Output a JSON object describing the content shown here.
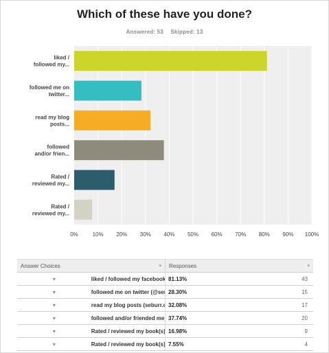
{
  "title": "Which of these have you done?",
  "answered_label": "Answered: 53",
  "skipped_label": "Skipped: 13",
  "chart_data": {
    "type": "bar",
    "orientation": "horizontal",
    "categories": [
      "liked / followed my...",
      "followed me on twitter...",
      "read my blog posts...",
      "followed and/or frien...",
      "Rated / reviewed my...",
      "Rated / reviewed my..."
    ],
    "values": [
      81.13,
      28.3,
      32.08,
      37.74,
      16.98,
      7.55
    ],
    "colors": [
      "#cdd52a",
      "#35bec2",
      "#f6ad23",
      "#8c8b7c",
      "#2d5c6c",
      "#d3d2c4"
    ],
    "xlim": [
      0,
      100
    ],
    "xticks": [
      "0%",
      "10%",
      "20%",
      "30%",
      "40%",
      "50%",
      "60%",
      "70%",
      "80%",
      "90%",
      "100%"
    ],
    "grid": true
  },
  "table": {
    "header": {
      "choices": "Answer Choices",
      "responses": "Responses"
    },
    "rows": [
      {
        "label": "liked / followed my facebook page (https://www.facebook.com/serinburr)",
        "pct": "81.13%",
        "count": "43"
      },
      {
        "label": "followed me on twitter (@serinburr)",
        "pct": "28.30%",
        "count": "15"
      },
      {
        "label": "read my blog posts (seburr.com/blog)",
        "pct": "32.08%",
        "count": "17"
      },
      {
        "label": "followed and/or friended me on Goodreads",
        "pct": "37.74%",
        "count": "20"
      },
      {
        "label": "Rated / reviewed my book(s) on Amazon",
        "pct": "16.98%",
        "count": "9"
      },
      {
        "label": "Rated / reviewed my book(s) somewhere else online",
        "pct": "7.55%",
        "count": "4"
      }
    ]
  }
}
